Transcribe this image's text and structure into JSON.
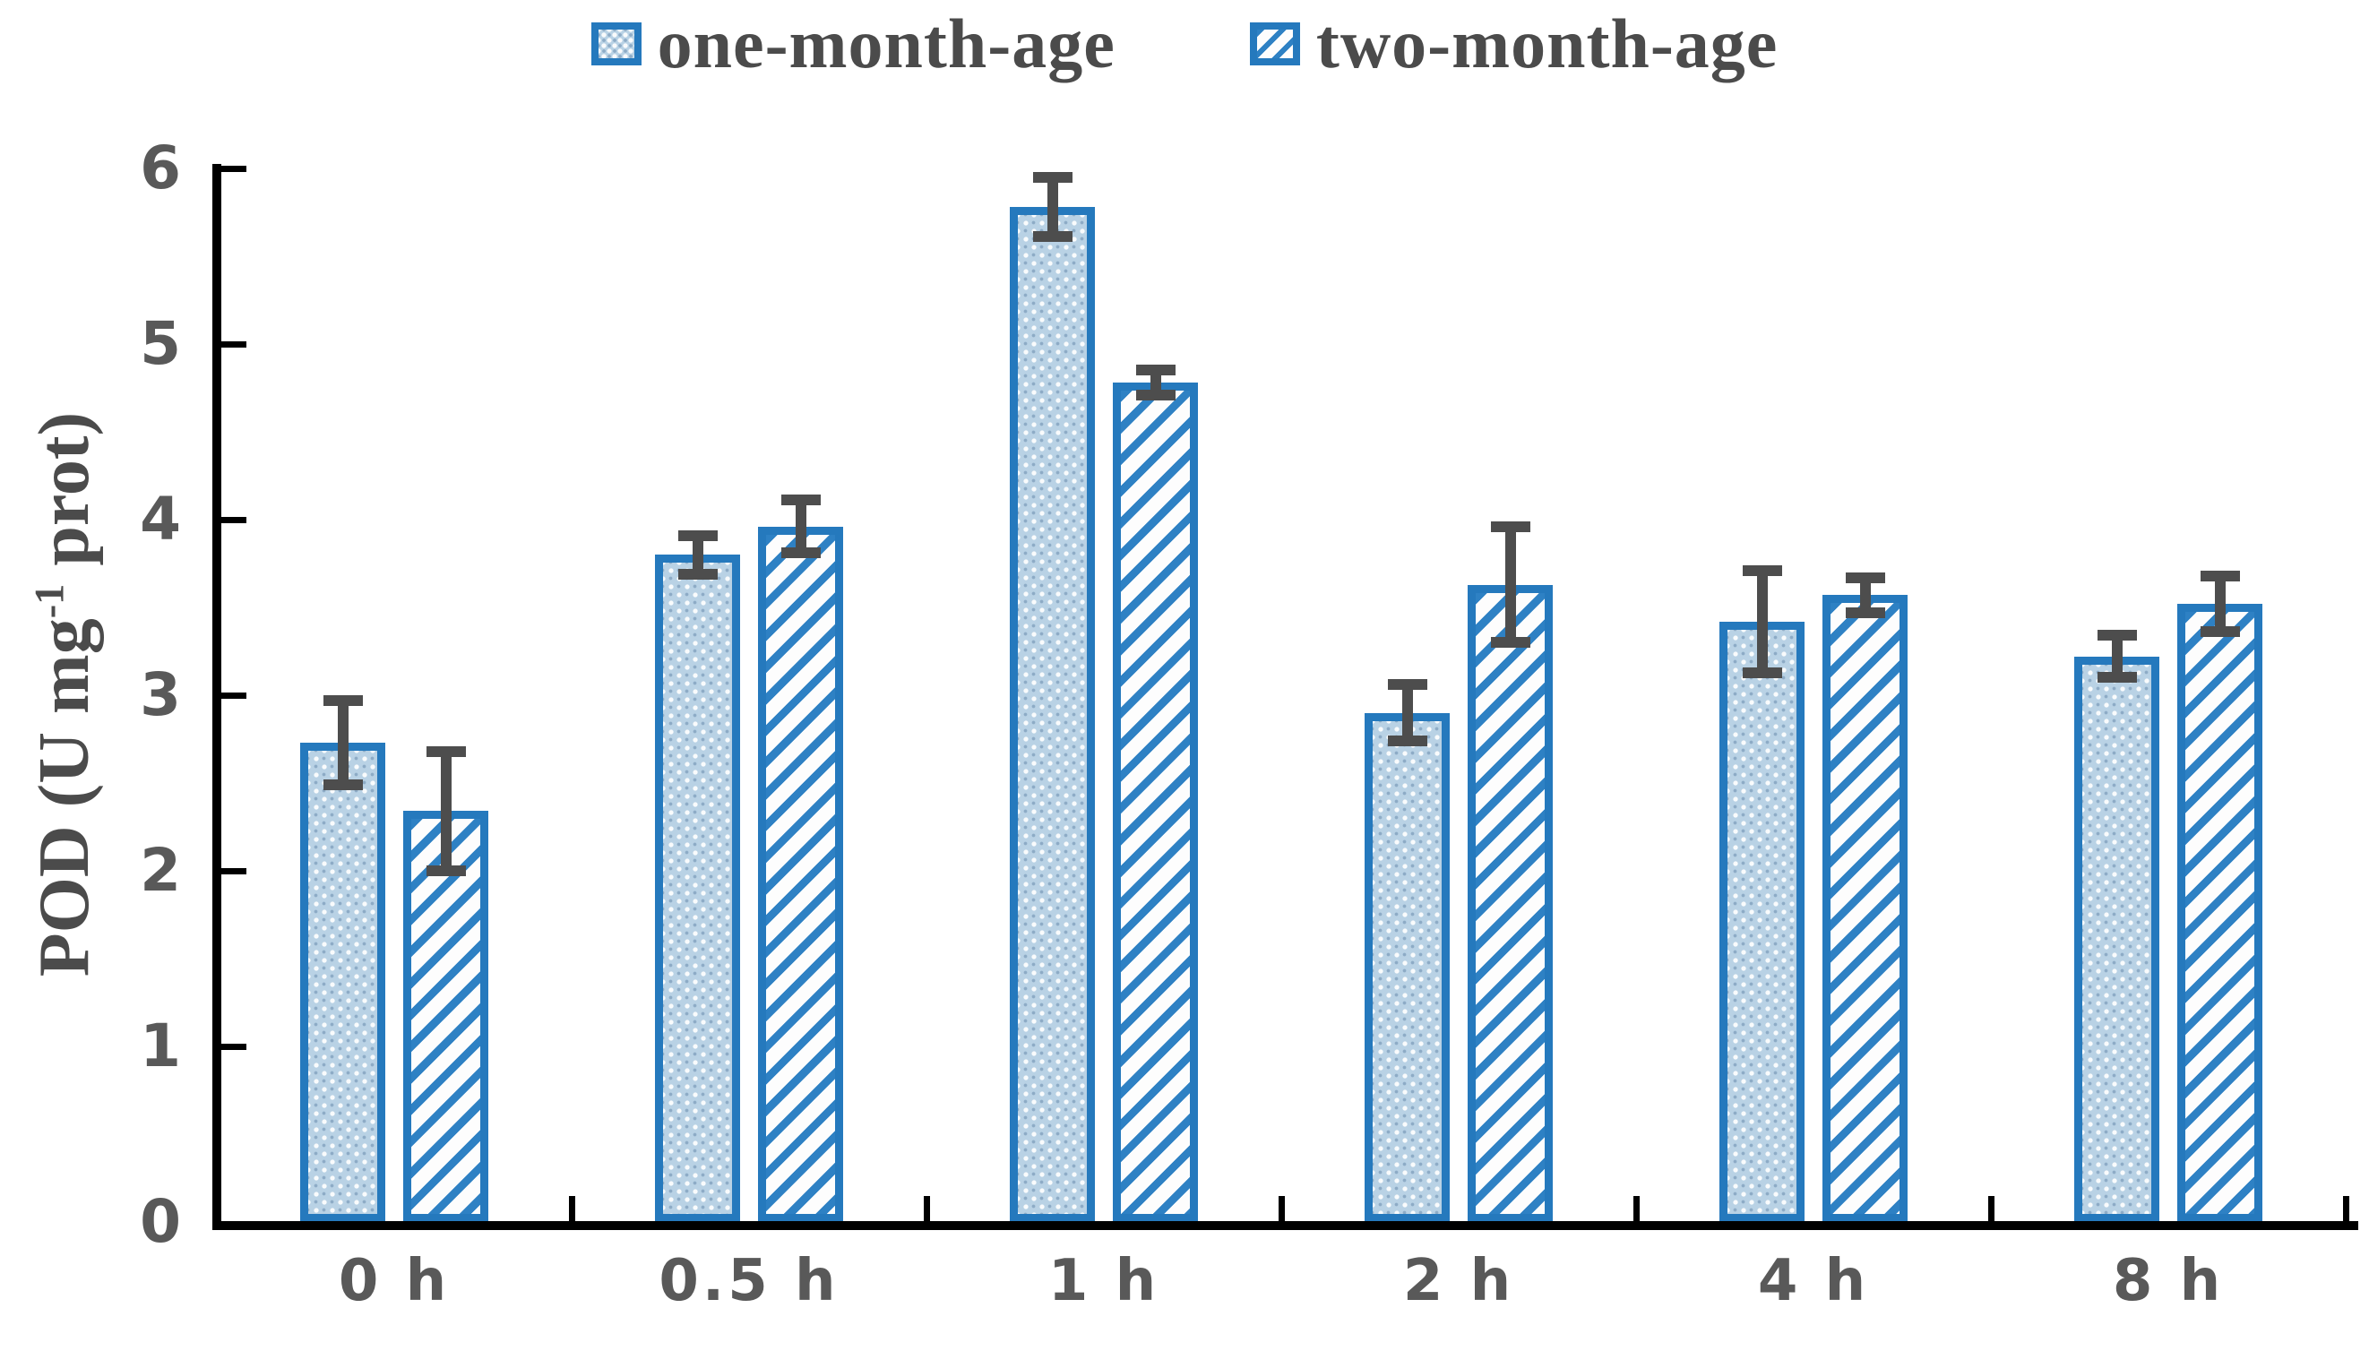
{
  "legend": {
    "items": [
      {
        "label": "one-month-age",
        "pattern": "dots"
      },
      {
        "label": "two-month-age",
        "pattern": "diagonal-hatch"
      }
    ]
  },
  "y_axis": {
    "title_prefix": "POD (U mg",
    "title_sup": "-1",
    "title_suffix": " prot)",
    "tick_labels": [
      "0",
      "1",
      "2",
      "3",
      "4",
      "5",
      "6"
    ]
  },
  "x_axis": {
    "tick_labels": [
      "0 h",
      "0.5 h",
      "1 h",
      "2 h",
      "4 h",
      "8 h"
    ]
  },
  "chart_data": {
    "type": "bar",
    "title": "",
    "xlabel": "",
    "ylabel": "POD (U mg-1 prot)",
    "ylim": [
      0,
      6
    ],
    "yticks": [
      0,
      1,
      2,
      3,
      4,
      5,
      6
    ],
    "grid": false,
    "legend_position": "top-center",
    "categories": [
      "0 h",
      "0.5 h",
      "1 h",
      "2 h",
      "4 h",
      "8 h"
    ],
    "series": [
      {
        "name": "one-month-age",
        "pattern": "dots",
        "values": [
          2.73,
          3.8,
          5.78,
          2.9,
          3.42,
          3.22
        ],
        "errors": [
          0.24,
          0.11,
          0.17,
          0.16,
          0.29,
          0.12
        ]
      },
      {
        "name": "two-month-age",
        "pattern": "diagonal-hatch",
        "values": [
          2.34,
          3.96,
          4.78,
          3.63,
          3.57,
          3.52
        ],
        "errors": [
          0.34,
          0.15,
          0.07,
          0.33,
          0.1,
          0.16
        ]
      }
    ]
  },
  "colors": {
    "bar_border": "#2579bd",
    "hatch_stripe": "#2e81c4",
    "dots_base": "#b9d2e5",
    "error_bar": "#4d4d4d",
    "axis": "#000000",
    "tick_text": "#595959",
    "legend_text": "#4b4b4b"
  }
}
